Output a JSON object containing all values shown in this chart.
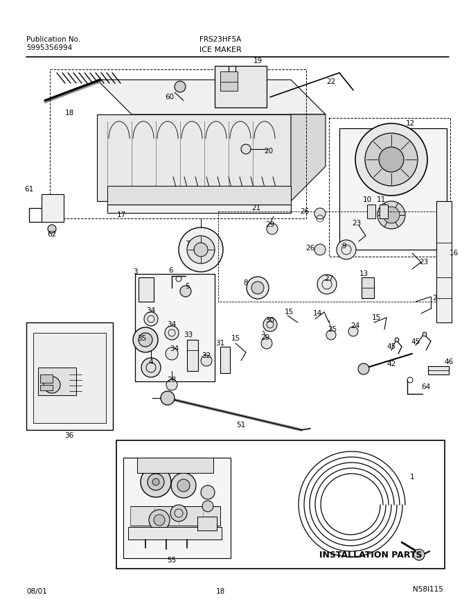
{
  "title_left_line1": "Publication No.",
  "title_left_line2": "5995356994",
  "title_center_top": "FRS23HF5A",
  "title_center_bottom": "ICE MAKER",
  "footer_left": "08/01",
  "footer_center": "18",
  "footer_right": "N58I115",
  "bg_color": "#ffffff",
  "line_color": "#000000",
  "text_color": "#000000",
  "fig_width": 6.8,
  "fig_height": 8.71,
  "dpi": 100
}
